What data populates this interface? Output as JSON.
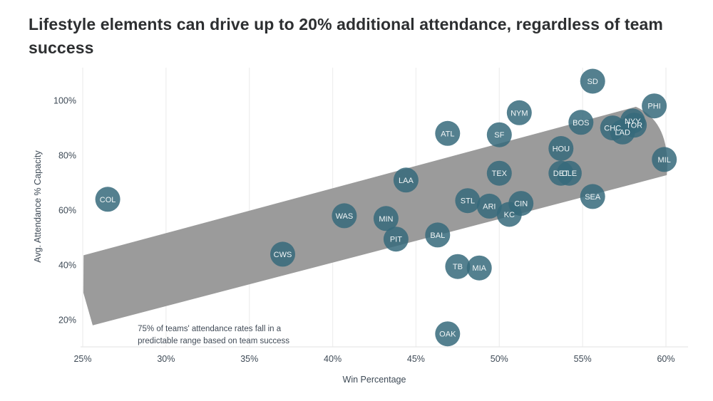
{
  "title": "Lifestyle elements can drive up to 20% additional attendance, regardless of team success",
  "colors": {
    "bubble_fill": "#366a7b",
    "bubble_opacity": 0.85,
    "bubble_label": "#f2f6f7",
    "band_fill": "#9b9b9b",
    "gridline": "#efefef",
    "axis_line": "#e7e7e7",
    "axis_text": "#3e4a56",
    "annotation_text": "#414b57",
    "title_text": "#2d2f31"
  },
  "chart_data": {
    "type": "scatter",
    "title": "Lifestyle elements can drive up to 20% additional attendance, regardless of team success",
    "xlabel": "Win Percentage",
    "ylabel": "Avg. Attendance % Capacity",
    "xlim": [
      25,
      60
    ],
    "ylim": [
      20,
      100
    ],
    "grid": "vertical-only",
    "legend": "none",
    "x_axis": {
      "tick_values": [
        25,
        30,
        35,
        40,
        45,
        50,
        55,
        60
      ],
      "tick_labels": [
        "25%",
        "30%",
        "35%",
        "40%",
        "45%",
        "50%",
        "55%",
        "60%"
      ]
    },
    "y_axis": {
      "tick_values": [
        20,
        40,
        60,
        80,
        100
      ],
      "tick_labels": [
        "20%",
        "40%",
        "60%",
        "80%",
        "100%"
      ]
    },
    "points": [
      {
        "team": "COL",
        "win": 26.5,
        "att": 64.0
      },
      {
        "team": "CWS",
        "win": 37.0,
        "att": 44.0
      },
      {
        "team": "WAS",
        "win": 40.7,
        "att": 58.0
      },
      {
        "team": "MIN",
        "win": 43.2,
        "att": 57.0
      },
      {
        "team": "PIT",
        "win": 43.8,
        "att": 49.5
      },
      {
        "team": "LAA",
        "win": 44.4,
        "att": 71.0
      },
      {
        "team": "BAL",
        "win": 46.3,
        "att": 51.0
      },
      {
        "team": "TB",
        "win": 47.5,
        "att": 39.5
      },
      {
        "team": "MIA",
        "win": 48.8,
        "att": 39.0
      },
      {
        "team": "OAK",
        "win": 46.9,
        "att": 15.0
      },
      {
        "team": "ATL",
        "win": 46.9,
        "att": 88.0
      },
      {
        "team": "SF",
        "win": 50.0,
        "att": 87.5
      },
      {
        "team": "NYM",
        "win": 51.2,
        "att": 95.5
      },
      {
        "team": "TEX",
        "win": 50.0,
        "att": 73.5
      },
      {
        "team": "STL",
        "win": 48.1,
        "att": 63.5
      },
      {
        "team": "ARI",
        "win": 49.4,
        "att": 61.5
      },
      {
        "team": "KC",
        "win": 50.6,
        "att": 58.5
      },
      {
        "team": "CIN",
        "win": 51.3,
        "att": 62.5
      },
      {
        "team": "DET",
        "win": 53.7,
        "att": 73.5
      },
      {
        "team": "CLE",
        "win": 54.2,
        "att": 73.5
      },
      {
        "team": "HOU",
        "win": 53.7,
        "att": 82.5
      },
      {
        "team": "BOS",
        "win": 54.9,
        "att": 92.0
      },
      {
        "team": "SEA",
        "win": 55.6,
        "att": 65.0
      },
      {
        "team": "SD",
        "win": 55.6,
        "att": 107.0
      },
      {
        "team": "CHC",
        "win": 56.8,
        "att": 90.0
      },
      {
        "team": "NYY",
        "win": 58.0,
        "att": 92.5
      },
      {
        "team": "TOR",
        "win": 58.1,
        "att": 91.0
      },
      {
        "team": "LAD",
        "win": 57.4,
        "att": 88.5
      },
      {
        "team": "PHI",
        "win": 59.3,
        "att": 98.0
      },
      {
        "team": "MIL",
        "win": 59.9,
        "att": 78.5
      }
    ],
    "band": {
      "description": "75% prediction band from lower-left to upper-right",
      "polygon": [
        {
          "win": 25.05,
          "att": 43.6
        },
        {
          "win": 58.2,
          "att": 97.7
        },
        {
          "win": 60.3,
          "att": 92.0,
          "cp": true
        },
        {
          "win": 60.05,
          "att": 72.8
        },
        {
          "win": 56.5,
          "att": 67.1
        },
        {
          "win": 25.6,
          "att": 18.1
        },
        {
          "win": 25.04,
          "att": 30.0
        }
      ],
      "note_lines": [
        "75% of teams' attendance rates fall in a",
        "predictable range based on team success"
      ],
      "note_anchor": {
        "win": 28.3,
        "att": 16.0
      }
    }
  }
}
